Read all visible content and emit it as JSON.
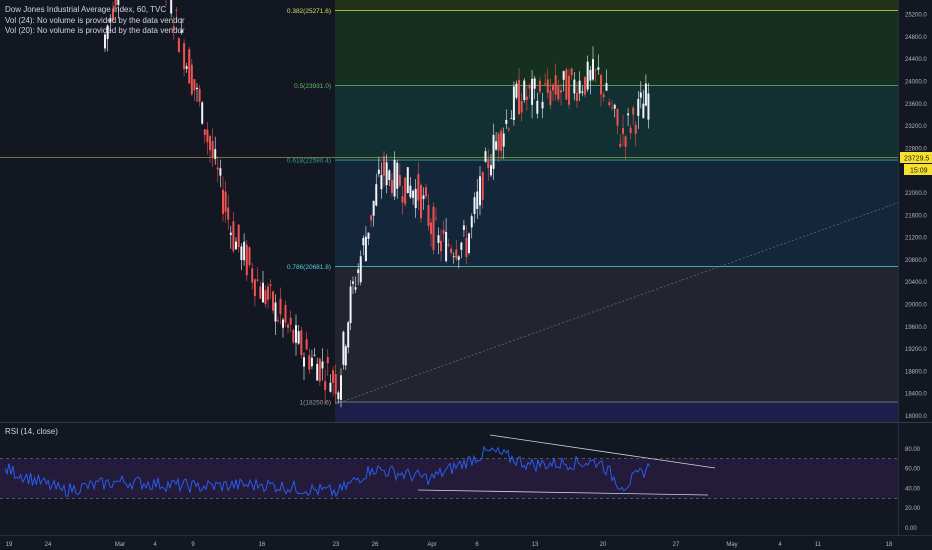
{
  "header": {
    "title": "Dow Jones Industrial Average Index, 60, TVC",
    "vol24": "Vol (24): No volume is provided by the data vendor",
    "vol20": "Vol (20): No volume is provided by the data vendor"
  },
  "fib_levels": [
    {
      "label": "0.236(26930.3)",
      "value": 26930.3,
      "line": "#e53935",
      "fill": "#3b1419",
      "text": "#e53935"
    },
    {
      "label": "0.382(25271.6)",
      "value": 25271.6,
      "line": "#d4e157",
      "fill": "#223218",
      "text": "#d4e157"
    },
    {
      "label": "0.5(23931.0)",
      "value": 23931.0,
      "line": "#66bb6a",
      "fill": "#16301f",
      "text": "#66bb6a"
    },
    {
      "label": "0.618(22590.4)",
      "value": 22590.4,
      "line": "#26a69a",
      "fill": "#123032",
      "text": "#26a69a"
    },
    {
      "label": "0.786(20681.8)",
      "value": 20681.8,
      "line": "#4dd0e1",
      "fill": "#13263a",
      "text": "#4dd0e1"
    },
    {
      "label": "1(18250.6)",
      "value": 18250.6,
      "line": "#78909c",
      "fill": "#23252e",
      "text": "#9598a1"
    }
  ],
  "price_axis": {
    "ticks": [
      "27200.0",
      "26800.0",
      "26400.0",
      "26000.0",
      "25600.0",
      "25200.0",
      "24800.0",
      "24400.0",
      "24000.0",
      "23600.0",
      "23200.0",
      "22800.0",
      "22400.0",
      "22000.0",
      "21600.0",
      "21200.0",
      "20800.0",
      "20400.0",
      "20000.0",
      "19600.0",
      "19200.0",
      "18800.0",
      "18400.0",
      "18000.0"
    ],
    "current_price": "23729.5",
    "countdown": "15:09"
  },
  "rsi": {
    "label": "RSI (14, close)",
    "ticks": [
      "80.00",
      "60.00",
      "40.00",
      "20.00",
      "0.00"
    ]
  },
  "time_axis": {
    "ticks": [
      "19",
      "24",
      "Mar",
      "4",
      "9",
      "16",
      "23",
      "26",
      "Apr",
      "6",
      "13",
      "20",
      "27",
      "May",
      "4",
      "11",
      "18"
    ]
  },
  "chart_data": {
    "type": "candlestick",
    "title": "Dow Jones Industrial Average Index, 60, TVC",
    "ylim": [
      17900,
      27350
    ],
    "current_price": 23729.5,
    "fib_retracement": {
      "0.236": 26930.3,
      "0.382": 25271.6,
      "0.5": 23931.0,
      "0.618": 22590.4,
      "0.786": 20681.8,
      "1": 18250.6
    },
    "price_path": [
      {
        "x": "Feb 28",
        "close": 24600
      },
      {
        "x": "Mar 2",
        "close": 25800
      },
      {
        "x": "Mar 4",
        "close": 26600
      },
      {
        "x": "Mar 5",
        "close": 25800
      },
      {
        "x": "Mar 9",
        "close": 23900
      },
      {
        "x": "Mar 12",
        "close": 21200
      },
      {
        "x": "Mar 16",
        "close": 20300
      },
      {
        "x": "Mar 18",
        "close": 19600
      },
      {
        "x": "Mar 20",
        "close": 19200
      },
      {
        "x": "Mar 23",
        "close": 18600
      },
      {
        "x": "Mar 24",
        "close": 20100
      },
      {
        "x": "Mar 26",
        "close": 22400
      },
      {
        "x": "Mar 30",
        "close": 22000
      },
      {
        "x": "Apr 1",
        "close": 21100
      },
      {
        "x": "Apr 3",
        "close": 21100
      },
      {
        "x": "Apr 6",
        "close": 22600
      },
      {
        "x": "Apr 9",
        "close": 23700
      },
      {
        "x": "Apr 14",
        "close": 23800
      },
      {
        "x": "Apr 17",
        "close": 24100
      },
      {
        "x": "Apr 21",
        "close": 23000
      },
      {
        "x": "Apr 23",
        "close": 23729.5
      }
    ],
    "rsi": {
      "ylim": [
        0,
        100
      ],
      "bands": [
        70,
        30
      ],
      "series": [
        {
          "x": "Feb 19",
          "v": 60
        },
        {
          "x": "Feb 24",
          "v": 38
        },
        {
          "x": "Mar 2",
          "v": 47
        },
        {
          "x": "Mar 9",
          "v": 42
        },
        {
          "x": "Mar 16",
          "v": 44
        },
        {
          "x": "Mar 23",
          "v": 36
        },
        {
          "x": "Mar 25",
          "v": 60
        },
        {
          "x": "Apr 1",
          "v": 50
        },
        {
          "x": "Apr 8",
          "v": 78
        },
        {
          "x": "Apr 14",
          "v": 64
        },
        {
          "x": "Apr 20",
          "v": 67
        },
        {
          "x": "Apr 22",
          "v": 41
        },
        {
          "x": "Apr 24",
          "v": 62
        }
      ]
    }
  }
}
